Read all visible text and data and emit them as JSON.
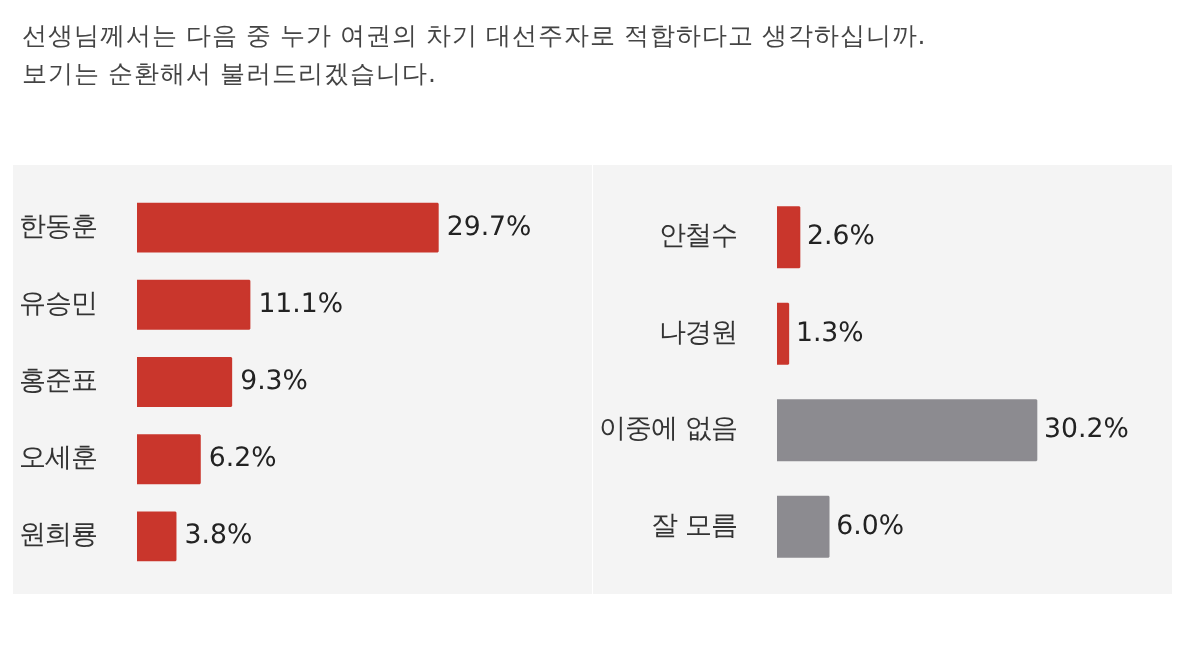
{
  "chart_data": [
    {
      "type": "bar",
      "orientation": "horizontal",
      "title": "선생님께서는 다음 중 누가 여권의 차기 대선주자로 적합하다고 생각하십니까.",
      "subtitle": "보기는 순환해서 불러드리겠습니다.",
      "categories": [
        "한동훈",
        "유승민",
        "홍준표",
        "오세훈",
        "원희룡"
      ],
      "values": [
        29.7,
        11.1,
        9.3,
        6.2,
        3.8
      ],
      "colors": [
        "#c9362c",
        "#c9362c",
        "#c9362c",
        "#c9362c",
        "#c9362c"
      ],
      "value_labels": [
        "29.7%",
        "11.1%",
        "9.3%",
        "6.2%",
        "3.8%"
      ]
    },
    {
      "type": "bar",
      "orientation": "horizontal",
      "categories": [
        "안철수",
        "나경원",
        "이중에 없음",
        "잘 모름"
      ],
      "values": [
        2.6,
        1.3,
        30.2,
        6.0
      ],
      "colors": [
        "#c9362c",
        "#c9362c",
        "#8c8b90",
        "#8c8b90"
      ],
      "value_labels": [
        "2.6%",
        "1.3%",
        "30.2%",
        "6.0%"
      ]
    }
  ]
}
